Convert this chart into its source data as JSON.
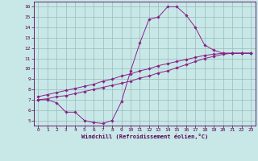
{
  "xlabel": "Windchill (Refroidissement éolien,°C)",
  "bg_color": "#c8e8e8",
  "line_color": "#882288",
  "grid_color": "#99bbbb",
  "xlim": [
    -0.5,
    23.5
  ],
  "ylim": [
    4.5,
    16.5
  ],
  "xticks": [
    0,
    1,
    2,
    3,
    4,
    5,
    6,
    7,
    8,
    9,
    10,
    11,
    12,
    13,
    14,
    15,
    16,
    17,
    18,
    19,
    20,
    21,
    22,
    23
  ],
  "yticks": [
    5,
    6,
    7,
    8,
    9,
    10,
    11,
    12,
    13,
    14,
    15,
    16
  ],
  "curve1_x": [
    0,
    1,
    2,
    3,
    4,
    5,
    6,
    7,
    8,
    9,
    10,
    11,
    12,
    13,
    14,
    15,
    16,
    17,
    18,
    19,
    20,
    21,
    22,
    23
  ],
  "curve1_y": [
    7.0,
    7.0,
    6.7,
    5.8,
    5.8,
    5.0,
    4.8,
    4.7,
    5.0,
    6.8,
    9.8,
    12.5,
    14.8,
    15.0,
    16.0,
    16.0,
    15.2,
    14.0,
    12.3,
    11.8,
    11.5,
    11.5,
    11.5,
    11.5
  ],
  "curve2_x": [
    0,
    1,
    2,
    3,
    4,
    5,
    6,
    7,
    8,
    9,
    10,
    11,
    12,
    13,
    14,
    15,
    16,
    17,
    18,
    19,
    20,
    21,
    22,
    23
  ],
  "curve2_y": [
    7.0,
    7.1,
    7.3,
    7.4,
    7.6,
    7.8,
    8.0,
    8.2,
    8.4,
    8.6,
    8.8,
    9.1,
    9.3,
    9.6,
    9.8,
    10.1,
    10.4,
    10.7,
    11.0,
    11.2,
    11.4,
    11.5,
    11.5,
    11.5
  ],
  "curve3_x": [
    0,
    1,
    2,
    3,
    4,
    5,
    6,
    7,
    8,
    9,
    10,
    11,
    12,
    13,
    14,
    15,
    16,
    17,
    18,
    19,
    20,
    21,
    22,
    23
  ],
  "curve3_y": [
    7.3,
    7.5,
    7.7,
    7.9,
    8.1,
    8.3,
    8.5,
    8.8,
    9.0,
    9.3,
    9.5,
    9.8,
    10.0,
    10.3,
    10.5,
    10.7,
    10.9,
    11.1,
    11.3,
    11.4,
    11.5,
    11.5,
    11.5,
    11.5
  ]
}
